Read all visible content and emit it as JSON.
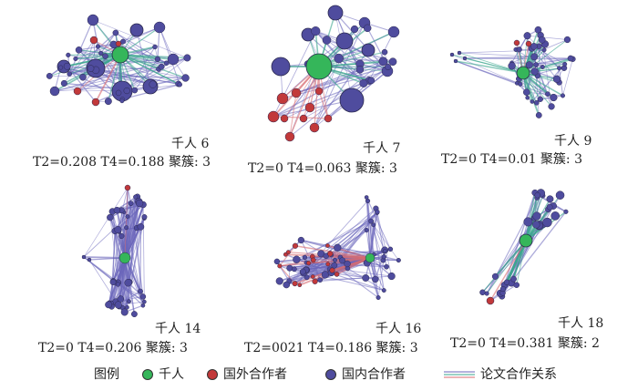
{
  "colors": {
    "thousand": "#35b65a",
    "foreign": "#c2393a",
    "domestic": "#4f4c9e",
    "edge_domestic": "#6a66bb",
    "edge_foreign": "#d86a6f",
    "edge_thousand": "#3aa58e"
  },
  "panels": [
    {
      "title": "千人  6",
      "stats": "T2=0.208  T4=0.188  聚簇: 3"
    },
    {
      "title": "千人  7",
      "stats": "T2=0   T4=0.063  聚簇: 3"
    },
    {
      "title": "千人  9",
      "stats": "T2=0    T4=0.01  聚簇: 3"
    },
    {
      "title": "千人  14",
      "stats": "T2=0   T4=0.206  聚簇: 3"
    },
    {
      "title": "千人  16",
      "stats": "T2=0021  T4=0.186  聚簇: 3"
    },
    {
      "title": "千人  18",
      "stats": "T2=0     T4=0.381  聚簇: 2"
    }
  ],
  "legend": {
    "title": "图例",
    "thousand": "千人",
    "foreign": "国外合作者",
    "domestic": "国内合作者",
    "edge": "论文合作关系"
  }
}
